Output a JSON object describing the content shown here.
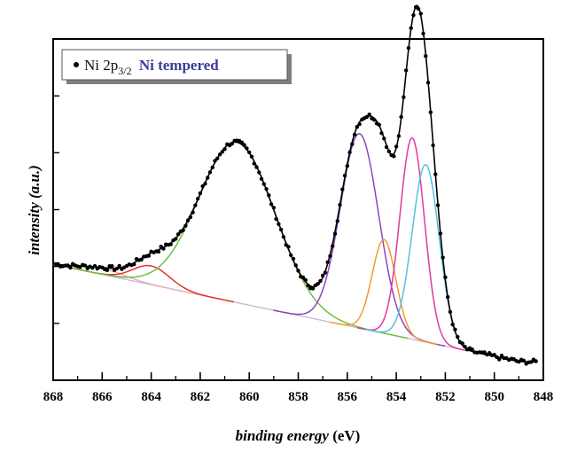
{
  "chart_data": {
    "type": "line",
    "xlabel_main": "binding energy",
    "xlabel_unit": "(eV)",
    "ylabel": "intensity (a.u.)",
    "xlim": [
      868,
      848
    ],
    "x_reversed": true,
    "ylim": [
      0,
      1
    ],
    "x_ticks": [
      868,
      866,
      864,
      862,
      860,
      858,
      856,
      854,
      852,
      850,
      848
    ],
    "y_ticks_labeled": false,
    "grid": false,
    "legend": {
      "position": "top-left",
      "marker_label": "Ni 2p",
      "marker_sub": "3/2",
      "sample_label": "Ni tempered",
      "sample_color": "#3b3b9a"
    },
    "baseline": {
      "x0": 868,
      "y0": 0.34,
      "x1": 849,
      "y1": 0.055,
      "color": "#c4b7d8"
    },
    "peaks": [
      {
        "name": "",
        "center": 866.0,
        "height": 0.018,
        "width": 0.9,
        "color": "#e9b0c6"
      },
      {
        "name": "",
        "center": 864.0,
        "height": 0.055,
        "width": 0.75,
        "color": "#e8302a"
      },
      {
        "name": "",
        "center": 860.5,
        "height": 0.47,
        "width": 1.55,
        "color": "#6cc040"
      },
      {
        "name": "",
        "center": 855.5,
        "height": 0.57,
        "width": 0.78,
        "color": "#8e45b8"
      },
      {
        "name": "",
        "center": 854.5,
        "height": 0.275,
        "width": 0.48,
        "color": "#f39a2f"
      },
      {
        "name": "",
        "center": 853.35,
        "height": 0.59,
        "width": 0.5,
        "color": "#e0399a"
      },
      {
        "name": "",
        "center": 852.8,
        "height": 0.52,
        "width": 0.55,
        "color": "#55c2e0"
      }
    ],
    "experimental_points_marker": "black dots",
    "envelope_color": "#000000"
  }
}
